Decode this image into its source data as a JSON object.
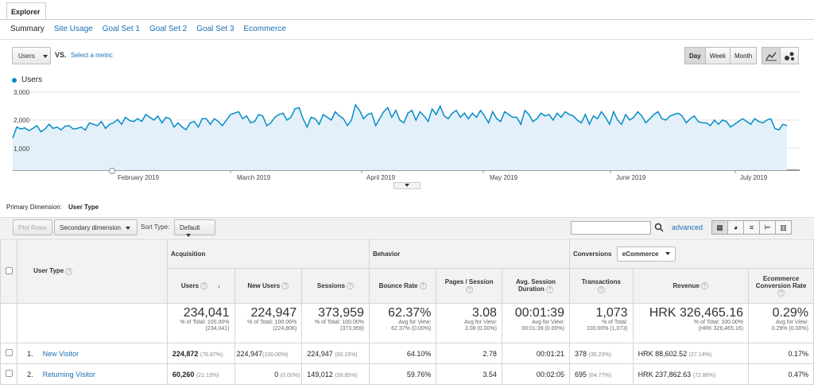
{
  "tab": {
    "title": "Explorer"
  },
  "subtabs": [
    {
      "label": "Summary",
      "active": true
    },
    {
      "label": "Site Usage"
    },
    {
      "label": "Goal Set 1"
    },
    {
      "label": "Goal Set 2"
    },
    {
      "label": "Goal Set 3"
    },
    {
      "label": "Ecommerce"
    }
  ],
  "metric_select": {
    "value": "Users",
    "vs": "VS.",
    "select_metric": "Select a metric"
  },
  "granularity": {
    "day": "Day",
    "week": "Week",
    "month": "Month",
    "selected": "Day"
  },
  "chart_data": {
    "type": "area",
    "series": [
      {
        "name": "Users",
        "color": "#058dc7",
        "values": [
          1350,
          1750,
          1680,
          1720,
          1620,
          1700,
          1800,
          1580,
          1680,
          1850,
          1700,
          1750,
          1650,
          1780,
          1800,
          1680,
          1700,
          1750,
          1640,
          1900,
          1850,
          1800,
          1950,
          1700,
          1850,
          1900,
          2020,
          1850,
          2100,
          1980,
          1950,
          2050,
          1950,
          2200,
          2100,
          2000,
          2150,
          1900,
          2100,
          2050,
          1750,
          1900,
          1750,
          1650,
          1900,
          1950,
          1750,
          2050,
          2050,
          1850,
          2050,
          1950,
          1800,
          2000,
          2200,
          2250,
          2300,
          2050,
          2150,
          1900,
          1950,
          2200,
          2150,
          1800,
          1900,
          2100,
          2200,
          2250,
          2000,
          2100,
          2400,
          2450,
          2050,
          1750,
          2100,
          2050,
          1850,
          2200,
          2100,
          2000,
          2300,
          2150,
          2050,
          1800,
          2000,
          2550,
          2350,
          2050,
          2200,
          2250,
          1800,
          2050,
          2300,
          2450,
          2100,
          2350,
          2000,
          1900,
          2250,
          2350,
          2000,
          2300,
          2150,
          1950,
          2400,
          2200,
          2500,
          2150,
          2050,
          2250,
          2350,
          2100,
          2250,
          2050,
          2250,
          2100,
          2350,
          2150,
          1900,
          2300,
          2050,
          1950,
          2300,
          2200,
          2100,
          2100,
          1850,
          2350,
          2200,
          1950,
          2050,
          2250,
          2150,
          2200,
          2000,
          2250,
          2100,
          2300,
          2200,
          2150,
          2000,
          1900,
          2200,
          1850,
          2150,
          2050,
          2300,
          2100,
          1850,
          2300,
          2000,
          1850,
          2200,
          2000,
          2100,
          2300,
          2150,
          1900,
          2050,
          2200,
          2300,
          2050,
          2000,
          2150,
          2200,
          2250,
          2150,
          1900,
          2050,
          2150,
          1950,
          1900,
          1900,
          1800,
          2000,
          1850,
          2000,
          1950,
          1750,
          1850,
          1950,
          2050,
          1950,
          1850,
          2050,
          1950,
          1900,
          2000,
          2050,
          1700,
          1650,
          1850,
          1800
        ]
      }
    ],
    "ylim": [
      0,
      3000
    ],
    "yticks": [
      "1,000",
      "2,000",
      "3,000"
    ],
    "xticks": [
      "February 2019",
      "March 2019",
      "April 2019",
      "May 2019",
      "June 2019",
      "July 2019"
    ]
  },
  "primary_dimension": {
    "label": "Primary Dimension:",
    "value": "User Type"
  },
  "toolbar": {
    "plot_rows": "Plot Rows",
    "secondary_dimension": "Secondary dimension",
    "sort_type_label": "Sort Type:",
    "sort_type_value": "Default",
    "advanced": "advanced"
  },
  "table": {
    "dimension_header": "User Type",
    "groups": {
      "acquisition": "Acquisition",
      "behavior": "Behavior",
      "conversions": "Conversions",
      "conversions_select": "eCommerce"
    },
    "columns": [
      "Users",
      "New Users",
      "Sessions",
      "Bounce Rate",
      "Pages / Session",
      "Avg. Session Duration",
      "Transactions",
      "Revenue",
      "Ecommerce Conversion Rate"
    ],
    "totals": [
      {
        "big": "234,041",
        "sub1": "% of Total: 100.00%",
        "sub2": "(234,041)"
      },
      {
        "big": "224,947",
        "sub1": "% of Total: 100.06%",
        "sub2": "(224,806)"
      },
      {
        "big": "373,959",
        "sub1": "% of Total: 100.00%",
        "sub2": "(373,959)"
      },
      {
        "big": "62.37%",
        "sub1": "Avg for View:",
        "sub2": "62.37% (0.00%)"
      },
      {
        "big": "3.08",
        "sub1": "Avg for View:",
        "sub2": "3.08 (0.00%)"
      },
      {
        "big": "00:01:39",
        "sub1": "Avg for View:",
        "sub2": "00:01:39 (0.00%)"
      },
      {
        "big": "1,073",
        "sub1": "% of Total:",
        "sub2": "100.00% (1,073)"
      },
      {
        "big": "HRK 326,465.16",
        "sub1": "% of Total: 100.00%",
        "sub2": "(HRK 326,465.16)"
      },
      {
        "big": "0.29%",
        "sub1": "Avg for View:",
        "sub2": "0.29% (0.00%)"
      }
    ],
    "rows": [
      {
        "num": "1.",
        "name": "New Visitor",
        "users": "224,872",
        "users_pct": "(78.87%)",
        "new_users": "224,947",
        "new_users_pct": "(100.00%)",
        "sessions": "224,947",
        "sessions_pct": "(60.15%)",
        "bounce": "64.10%",
        "pages": "2.78",
        "duration": "00:01:21",
        "transactions": "378",
        "transactions_pct": "(35.23%)",
        "revenue": "HRK 88,602.52",
        "revenue_pct": "(27.14%)",
        "conv": "0.17%"
      },
      {
        "num": "2.",
        "name": "Returning Visitor",
        "users": "60,260",
        "users_pct": "(21.13%)",
        "new_users": "0",
        "new_users_pct": "(0.00%)",
        "sessions": "149,012",
        "sessions_pct": "(39.85%)",
        "bounce": "59.76%",
        "pages": "3.54",
        "duration": "00:02:05",
        "transactions": "695",
        "transactions_pct": "(64.77%)",
        "revenue": "HRK 237,862.63",
        "revenue_pct": "(72.86%)",
        "conv": "0.47%"
      }
    ]
  }
}
